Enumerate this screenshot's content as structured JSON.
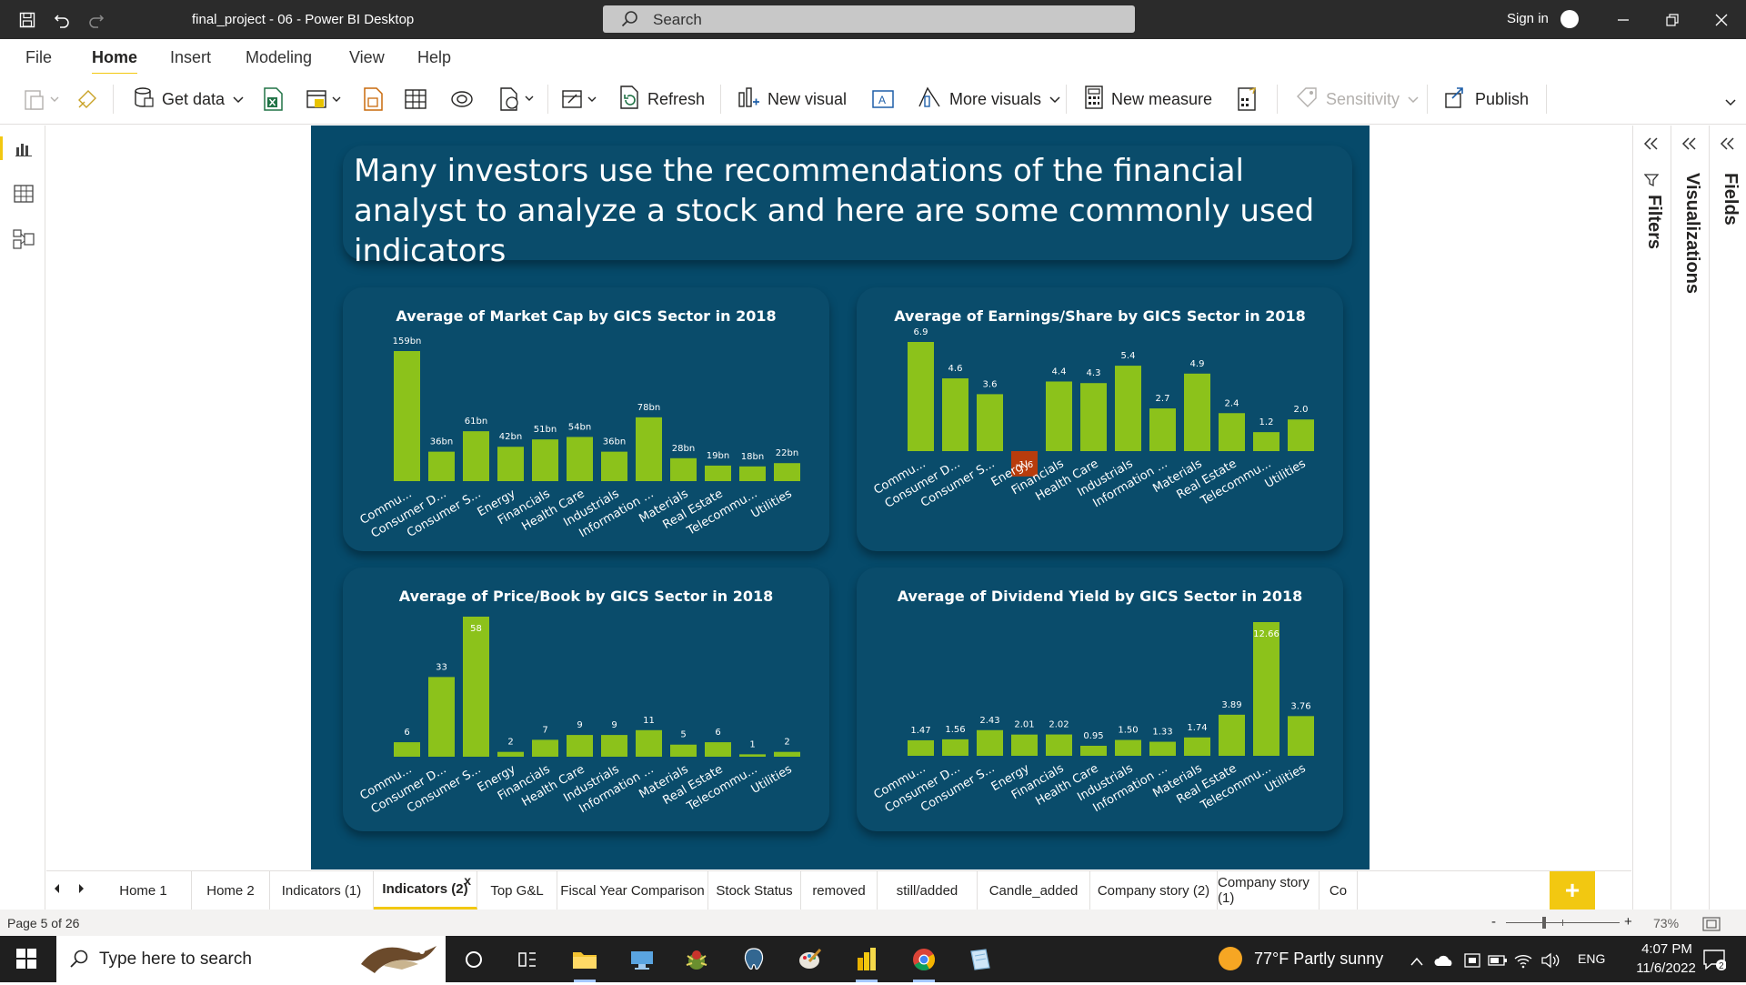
{
  "titlebar": {
    "title": "final_project - 06 - Power BI Desktop",
    "search_placeholder": "Search",
    "signin_label": "Sign in"
  },
  "menubar": {
    "tabs": [
      "File",
      "Home",
      "Insert",
      "Modeling",
      "View",
      "Help"
    ],
    "active": "Home"
  },
  "ribbon": {
    "get_data": "Get data",
    "refresh": "Refresh",
    "new_visual": "New visual",
    "more_visuals": "More visuals",
    "new_measure": "New measure",
    "sensitivity": "Sensitivity",
    "publish": "Publish"
  },
  "report": {
    "headline": "Many investors use the recommendations of the financial analyst to analyze a stock and here are some commonly used indicators"
  },
  "panes": {
    "filters": "Filters",
    "visualizations": "Visualizations",
    "fields": "Fields"
  },
  "colors": {
    "page_bg": "#064a6a",
    "card_bg": "#0a4c6b",
    "bar": "#8cc21b",
    "negative_bar": "#b83c0c",
    "accent": "#f2c811"
  },
  "chart_data": [
    {
      "type": "bar",
      "title": "Average of Market Cap by GICS Sector in 2018",
      "categories": [
        "Commu...",
        "Consumer D...",
        "Consumer S...",
        "Energy",
        "Financials",
        "Health Care",
        "Industrials",
        "Information ...",
        "Materials",
        "Real Estate",
        "Telecommu...",
        "Utilities"
      ],
      "values": [
        159,
        36,
        61,
        42,
        51,
        54,
        36,
        78,
        28,
        19,
        18,
        22
      ],
      "labels": [
        "159bn",
        "36bn",
        "61bn",
        "42bn",
        "51bn",
        "54bn",
        "36bn",
        "78bn",
        "28bn",
        "19bn",
        "18bn",
        "22bn"
      ]
    },
    {
      "type": "bar",
      "title": "Average of Earnings/Share by GICS Sector in 2018",
      "categories": [
        "Commu...",
        "Consumer D...",
        "Consumer S...",
        "Energy",
        "Financials",
        "Health Care",
        "Industrials",
        "Information ...",
        "Materials",
        "Real Estate",
        "Telecommu...",
        "Utilities"
      ],
      "values": [
        6.9,
        4.6,
        3.6,
        -1.6,
        4.4,
        4.3,
        5.4,
        2.7,
        4.9,
        2.4,
        1.2,
        2.0
      ],
      "labels": [
        "6.9",
        "4.6",
        "3.6",
        "-1.6",
        "4.4",
        "4.3",
        "5.4",
        "2.7",
        "4.9",
        "2.4",
        "1.2",
        "2.0"
      ]
    },
    {
      "type": "bar",
      "title": "Average of Price/Book by GICS Sector in 2018",
      "categories": [
        "Commu...",
        "Consumer D...",
        "Consumer S...",
        "Energy",
        "Financials",
        "Health Care",
        "Industrials",
        "Information ...",
        "Materials",
        "Real Estate",
        "Telecommu...",
        "Utilities"
      ],
      "values": [
        6,
        33,
        58,
        2,
        7,
        9,
        9,
        11,
        5,
        6,
        1,
        2
      ],
      "labels": [
        "6",
        "33",
        "58",
        "2",
        "7",
        "9",
        "9",
        "11",
        "5",
        "6",
        "1",
        "2"
      ]
    },
    {
      "type": "bar",
      "title": "Average of Dividend Yield by GICS Sector in 2018",
      "categories": [
        "Commu...",
        "Consumer D...",
        "Consumer S...",
        "Energy",
        "Financials",
        "Health Care",
        "Industrials",
        "Information ...",
        "Materials",
        "Real Estate",
        "Telecommu...",
        "Utilities"
      ],
      "values": [
        1.47,
        1.56,
        2.43,
        2.01,
        2.02,
        0.95,
        1.5,
        1.33,
        1.74,
        3.89,
        12.66,
        3.76
      ],
      "labels": [
        "1.47",
        "1.56",
        "2.43",
        "2.01",
        "2.02",
        "0.95",
        "1.50",
        "1.33",
        "1.74",
        "3.89",
        "12.66",
        "3.76"
      ]
    }
  ],
  "page_tabs": {
    "items": [
      "Home 1",
      "Home 2",
      "Indicators (1)",
      "Indicators (2)",
      "Top G&L",
      "Fiscal Year Comparison",
      "Stock Status",
      "removed",
      "still/added",
      "Candle_added",
      "Company story (2)",
      "Company story (1)",
      "Co"
    ],
    "active": "Indicators (2)",
    "close_glyph": "x",
    "add_glyph": "+"
  },
  "status": {
    "page_count": "Page 5 of 26",
    "zoom_minus": "-",
    "zoom_plus": "+",
    "zoom": "73%"
  },
  "taskbar": {
    "search_placeholder": "Type here to search",
    "weather": "77°F  Partly sunny",
    "lang": "ENG",
    "time": "4:07 PM",
    "date": "11/6/2022"
  }
}
